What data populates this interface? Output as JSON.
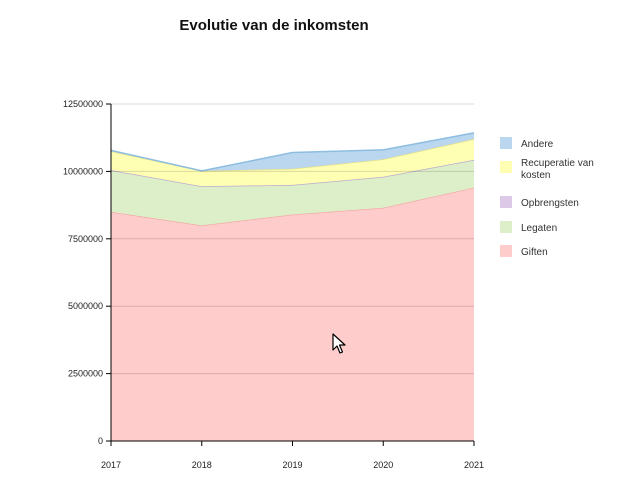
{
  "chart_data": {
    "type": "area",
    "stacked": true,
    "title": "Evolutie van de inkomsten",
    "xlabel": "",
    "ylabel": "",
    "x": [
      "2017",
      "2018",
      "2019",
      "2020",
      "2021"
    ],
    "ylim": [
      0,
      12500000
    ],
    "yticks": [
      0,
      2500000,
      5000000,
      7500000,
      10000000,
      12500000
    ],
    "ytick_labels": [
      "0",
      "2500000",
      "5000000",
      "7500000",
      "10000000",
      "12500000"
    ],
    "grid": true,
    "legend_position": "right",
    "series": [
      {
        "name": "Giften",
        "color": "#ffcccc",
        "line": "#f3aaa8",
        "values": [
          8500000,
          8000000,
          8400000,
          8650000,
          9400000
        ]
      },
      {
        "name": "Legaten",
        "color": "#ddefc9",
        "line": "#b8cd98",
        "values": [
          1550000,
          1450000,
          1100000,
          1150000,
          1030000
        ]
      },
      {
        "name": "Opbrengsten",
        "color": "#dcc9e8",
        "line": "#c2aed6",
        "values": [
          0,
          0,
          0,
          0,
          0
        ]
      },
      {
        "name": "Recuperatie van kosten",
        "color": "#ffffb3",
        "line": "#e8e08a",
        "values": [
          700000,
          570000,
          600000,
          650000,
          770000
        ]
      },
      {
        "name": "Andere",
        "color": "#bad7ef",
        "line": "#8dbde0",
        "values": [
          30000,
          0,
          600000,
          350000,
          230000
        ]
      }
    ],
    "legend_order": [
      "Andere",
      "Recuperatie van kosten",
      "Opbrengsten",
      "Legaten",
      "Giften"
    ]
  }
}
